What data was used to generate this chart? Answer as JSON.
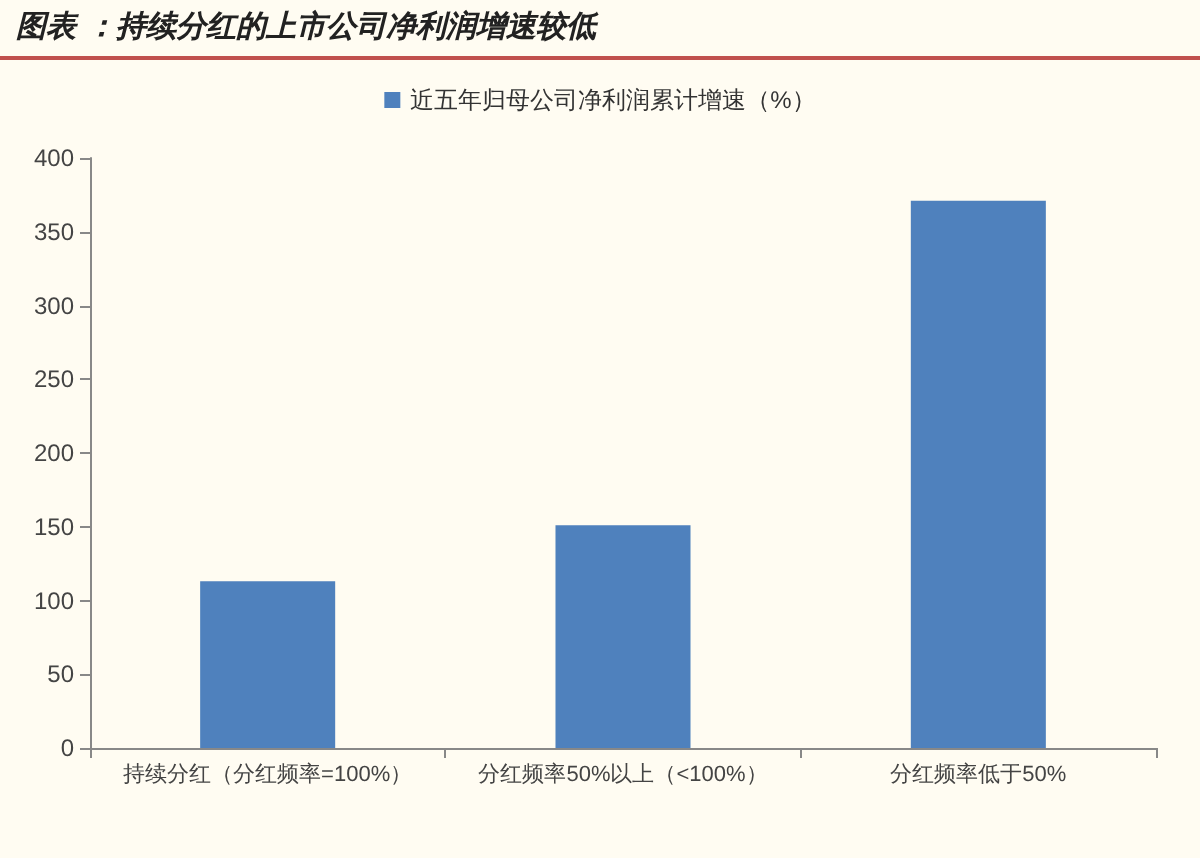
{
  "chart_data": {
    "type": "bar",
    "title": "图表 ：持续分红的上市公司净利润增速较低",
    "categories": [
      "持续分红（分红频率=100%）",
      "分红频率50%以上（<100%）",
      "分红频率低于50%"
    ],
    "series": [
      {
        "name": "近五年归母公司净利润累计增速（%）",
        "color": "#4f81bd",
        "values": [
          113,
          151,
          371
        ]
      }
    ],
    "ylim": [
      0,
      400
    ],
    "yticks": [
      0,
      50,
      100,
      150,
      200,
      250,
      300,
      350,
      400
    ],
    "grid": false,
    "legend": "top"
  }
}
